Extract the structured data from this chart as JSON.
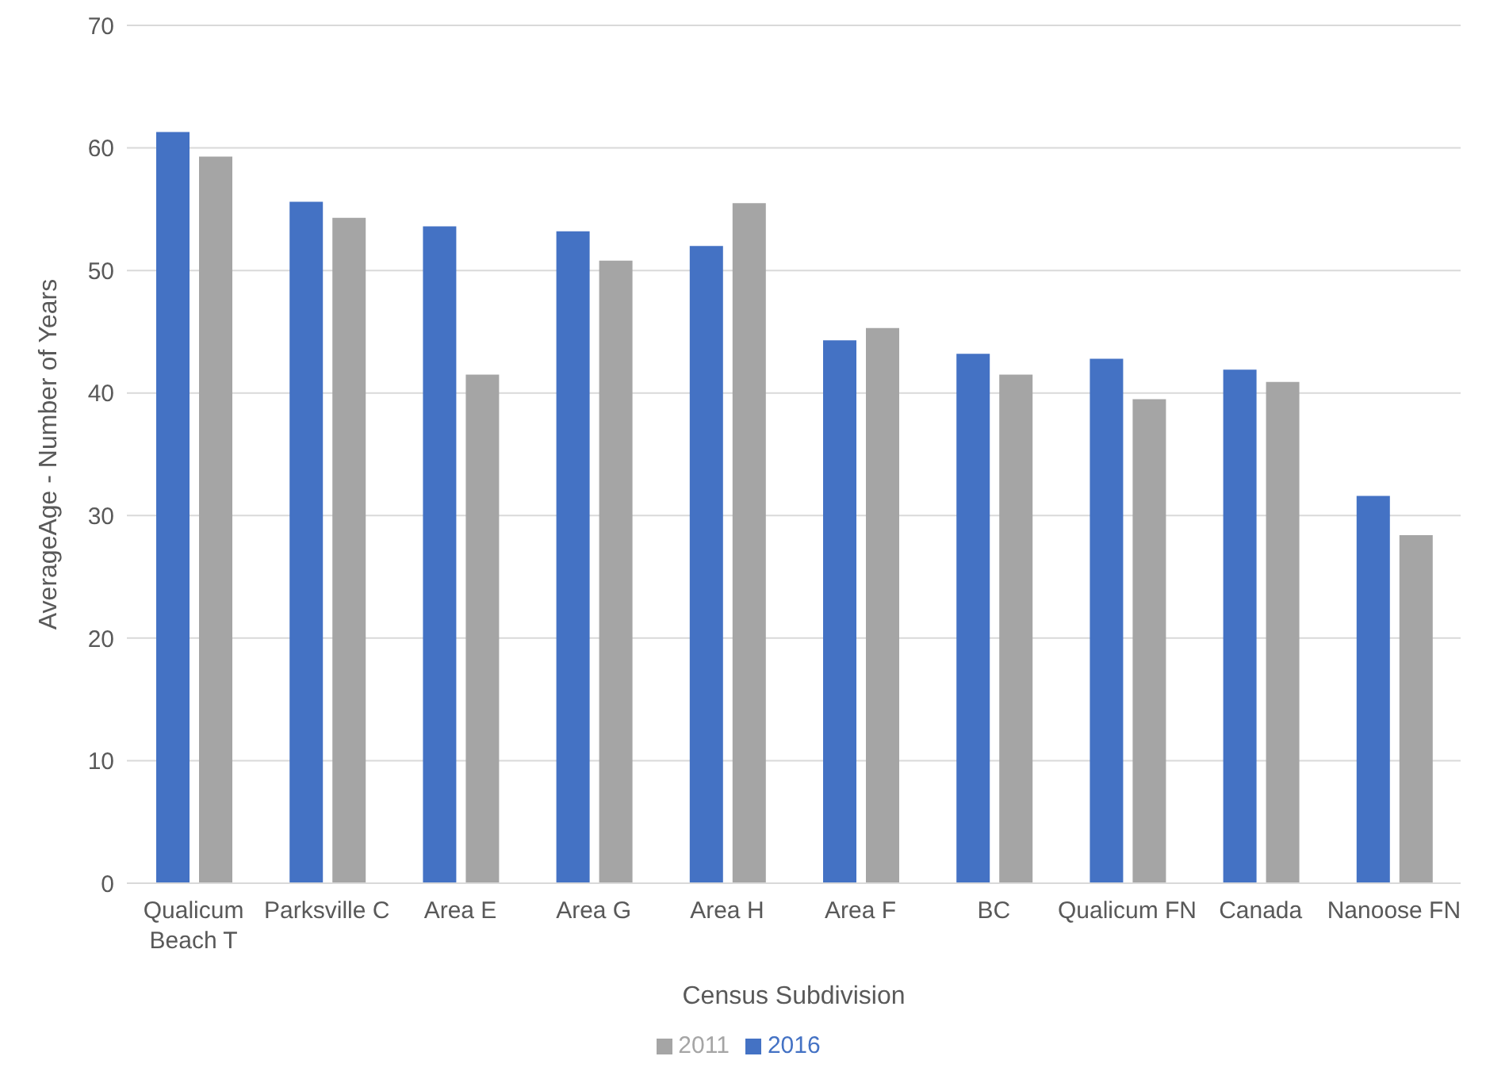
{
  "chart_data": {
    "type": "bar",
    "xlabel": "Census Subdivision",
    "ylabel": "AverageAge  - Number of Years",
    "categories": [
      "Qualicum Beach T",
      "Parksville C",
      "Area E",
      "Area G",
      "Area H",
      "Area F",
      "BC",
      "Qualicum FN",
      "Canada",
      "Nanoose FN"
    ],
    "series": [
      {
        "name": "2016",
        "color": "#4472c4",
        "values": [
          61.3,
          55.6,
          53.6,
          53.2,
          52.0,
          44.3,
          43.2,
          42.8,
          41.9,
          31.6
        ]
      },
      {
        "name": "2011",
        "color": "#a5a5a5",
        "values": [
          59.3,
          54.3,
          41.5,
          50.8,
          55.5,
          45.3,
          41.5,
          39.5,
          40.9,
          28.4
        ]
      }
    ],
    "ylim": [
      0,
      70
    ],
    "yticks": [
      0,
      10,
      20,
      30,
      40,
      50,
      60,
      70
    ],
    "grid": "y",
    "legend": "bottom"
  }
}
